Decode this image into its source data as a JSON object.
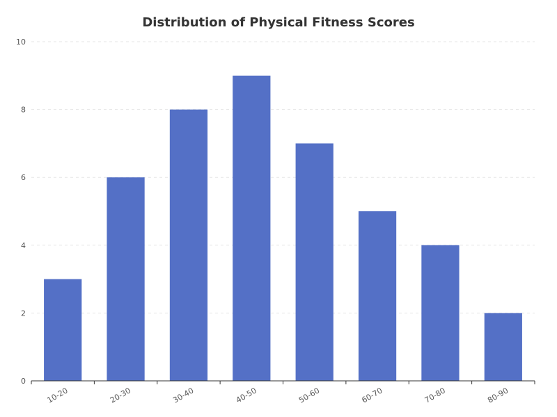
{
  "chart_data": {
    "type": "bar",
    "title": "Distribution of Physical Fitness Scores",
    "xlabel": "",
    "ylabel": "",
    "categories": [
      "10-20",
      "20-30",
      "30-40",
      "40-50",
      "50-60",
      "60-70",
      "70-80",
      "80-90"
    ],
    "values": [
      3,
      6,
      8,
      9,
      7,
      5,
      4,
      2
    ],
    "ylim": [
      0,
      10
    ],
    "yticks": [
      0,
      2,
      4,
      6,
      8,
      10
    ],
    "grid": true,
    "bar_color": "#5470c6",
    "legend": "none"
  }
}
